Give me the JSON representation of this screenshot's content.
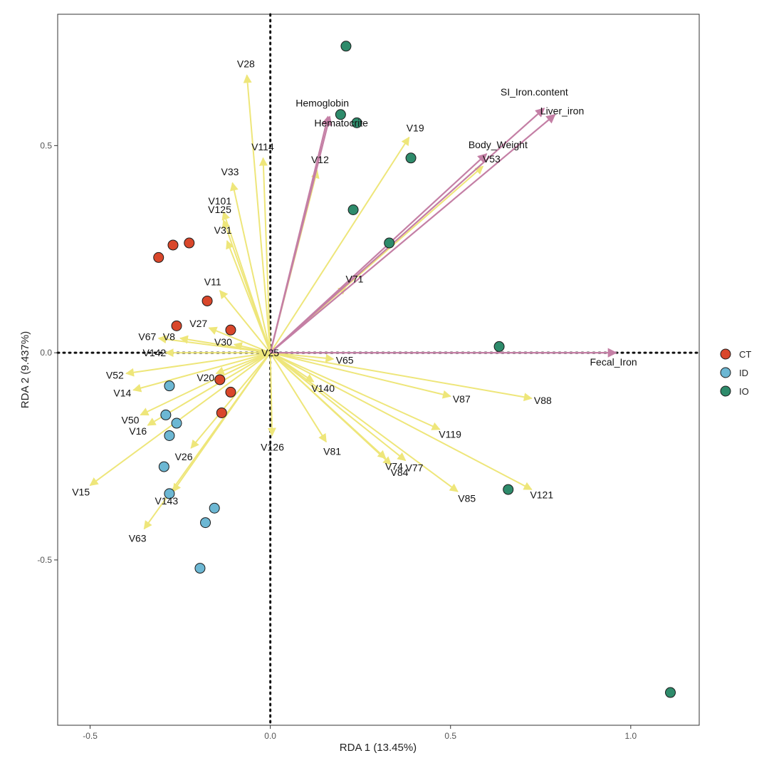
{
  "chart_data": {
    "type": "scatter",
    "title": "",
    "xlabel": "RDA 1 (13.45%)",
    "ylabel": "RDA 2 (9.437%)",
    "xlim": [
      -0.59,
      1.19
    ],
    "ylim": [
      -0.899,
      0.817
    ],
    "x_ticks": [
      -0.5,
      0.0,
      0.5,
      1.0
    ],
    "x_tick_labels": [
      "-0.5",
      "0.0",
      "0.5",
      "1.0"
    ],
    "y_ticks": [
      -0.5,
      0.0,
      0.5
    ],
    "y_tick_labels": [
      "-0.5",
      "0.0",
      "0.5"
    ],
    "reference_lines": {
      "x": 0,
      "y": 0,
      "style": "dotted"
    },
    "grid": false,
    "legend_position": "right",
    "legend": [
      {
        "group": "CT",
        "color": "#d9472b"
      },
      {
        "group": "ID",
        "color": "#6cb7d3"
      },
      {
        "group": "IO",
        "color": "#2e8b6b"
      }
    ],
    "samples": [
      {
        "group": "CT",
        "x": -0.31,
        "y": 0.23
      },
      {
        "group": "CT",
        "x": -0.27,
        "y": 0.26
      },
      {
        "group": "CT",
        "x": -0.225,
        "y": 0.265
      },
      {
        "group": "CT",
        "x": -0.175,
        "y": 0.125
      },
      {
        "group": "CT",
        "x": -0.26,
        "y": 0.065
      },
      {
        "group": "CT",
        "x": -0.11,
        "y": 0.055
      },
      {
        "group": "CT",
        "x": -0.14,
        "y": -0.065
      },
      {
        "group": "CT",
        "x": -0.11,
        "y": -0.095
      },
      {
        "group": "CT",
        "x": -0.135,
        "y": -0.145
      },
      {
        "group": "ID",
        "x": -0.28,
        "y": -0.08
      },
      {
        "group": "ID",
        "x": -0.29,
        "y": -0.15
      },
      {
        "group": "ID",
        "x": -0.26,
        "y": -0.17
      },
      {
        "group": "ID",
        "x": -0.28,
        "y": -0.2
      },
      {
        "group": "ID",
        "x": -0.295,
        "y": -0.275
      },
      {
        "group": "ID",
        "x": -0.28,
        "y": -0.34
      },
      {
        "group": "ID",
        "x": -0.155,
        "y": -0.375
      },
      {
        "group": "ID",
        "x": -0.18,
        "y": -0.41
      },
      {
        "group": "ID",
        "x": -0.195,
        "y": -0.52
      },
      {
        "group": "IO",
        "x": 0.21,
        "y": 0.74
      },
      {
        "group": "IO",
        "x": 0.195,
        "y": 0.575
      },
      {
        "group": "IO",
        "x": 0.24,
        "y": 0.555
      },
      {
        "group": "IO",
        "x": 0.39,
        "y": 0.47
      },
      {
        "group": "IO",
        "x": 0.23,
        "y": 0.345
      },
      {
        "group": "IO",
        "x": 0.33,
        "y": 0.265
      },
      {
        "group": "IO",
        "x": 0.635,
        "y": 0.015
      },
      {
        "group": "IO",
        "x": 0.66,
        "y": -0.33
      },
      {
        "group": "IO",
        "x": 1.11,
        "y": -0.82
      }
    ],
    "env_vectors": [
      {
        "name": "Hemoglobin",
        "x": 0.16,
        "y": 0.57
      },
      {
        "name": "Hematocrite",
        "x": 0.165,
        "y": 0.57
      },
      {
        "name": "SI_Iron.content",
        "x": 0.76,
        "y": 0.59
      },
      {
        "name": "Liver_iron",
        "x": 0.79,
        "y": 0.575
      },
      {
        "name": "Body_Weight",
        "x": 0.6,
        "y": 0.48
      },
      {
        "name": "Fecal_Iron",
        "x": 0.96,
        "y": 0.0
      }
    ],
    "species_vectors": [
      {
        "name": "V28",
        "x": -0.065,
        "y": 0.67
      },
      {
        "name": "V114",
        "x": -0.02,
        "y": 0.47
      },
      {
        "name": "V33",
        "x": -0.105,
        "y": 0.41
      },
      {
        "name": "V101",
        "x": -0.13,
        "y": 0.34
      },
      {
        "name": "V125",
        "x": -0.13,
        "y": 0.32
      },
      {
        "name": "V31",
        "x": -0.12,
        "y": 0.27
      },
      {
        "name": "V12",
        "x": 0.13,
        "y": 0.44
      },
      {
        "name": "V19",
        "x": 0.385,
        "y": 0.52
      },
      {
        "name": "V53",
        "x": 0.59,
        "y": 0.45
      },
      {
        "name": "V71",
        "x": 0.21,
        "y": 0.16
      },
      {
        "name": "V11",
        "x": -0.14,
        "y": 0.15
      },
      {
        "name": "V27",
        "x": -0.17,
        "y": 0.06
      },
      {
        "name": "V67",
        "x": -0.31,
        "y": 0.035
      },
      {
        "name": "V8",
        "x": -0.25,
        "y": 0.035
      },
      {
        "name": "V30",
        "x": -0.1,
        "y": 0.02
      },
      {
        "name": "V142",
        "x": -0.29,
        "y": 0.0
      },
      {
        "name": "V25",
        "x": 0.0,
        "y": 0.0
      },
      {
        "name": "V52",
        "x": -0.4,
        "y": -0.05
      },
      {
        "name": "V14",
        "x": -0.38,
        "y": -0.09
      },
      {
        "name": "V20",
        "x": -0.15,
        "y": -0.05
      },
      {
        "name": "V50",
        "x": -0.36,
        "y": -0.15
      },
      {
        "name": "V16",
        "x": -0.34,
        "y": -0.175
      },
      {
        "name": "V26",
        "x": -0.22,
        "y": -0.23
      },
      {
        "name": "V15",
        "x": -0.5,
        "y": -0.32
      },
      {
        "name": "V143",
        "x": -0.27,
        "y": -0.335
      },
      {
        "name": "V63",
        "x": -0.35,
        "y": -0.425
      },
      {
        "name": "V126",
        "x": 0.005,
        "y": -0.2
      },
      {
        "name": "V65",
        "x": 0.175,
        "y": -0.015
      },
      {
        "name": "V140",
        "x": 0.12,
        "y": -0.07
      },
      {
        "name": "V81",
        "x": 0.155,
        "y": -0.215
      },
      {
        "name": "V74",
        "x": 0.32,
        "y": -0.255
      },
      {
        "name": "V84",
        "x": 0.335,
        "y": -0.27
      },
      {
        "name": "V77",
        "x": 0.375,
        "y": -0.26
      },
      {
        "name": "V87",
        "x": 0.5,
        "y": -0.105
      },
      {
        "name": "V119",
        "x": 0.47,
        "y": -0.185
      },
      {
        "name": "V85",
        "x": 0.52,
        "y": -0.335
      },
      {
        "name": "V88",
        "x": 0.725,
        "y": -0.11
      },
      {
        "name": "V121",
        "x": 0.725,
        "y": -0.33
      }
    ]
  },
  "colors": {
    "env_arrow": "#c47fa5",
    "species_arrow": "#eee67a",
    "point_stroke": "#1a1a1a"
  }
}
